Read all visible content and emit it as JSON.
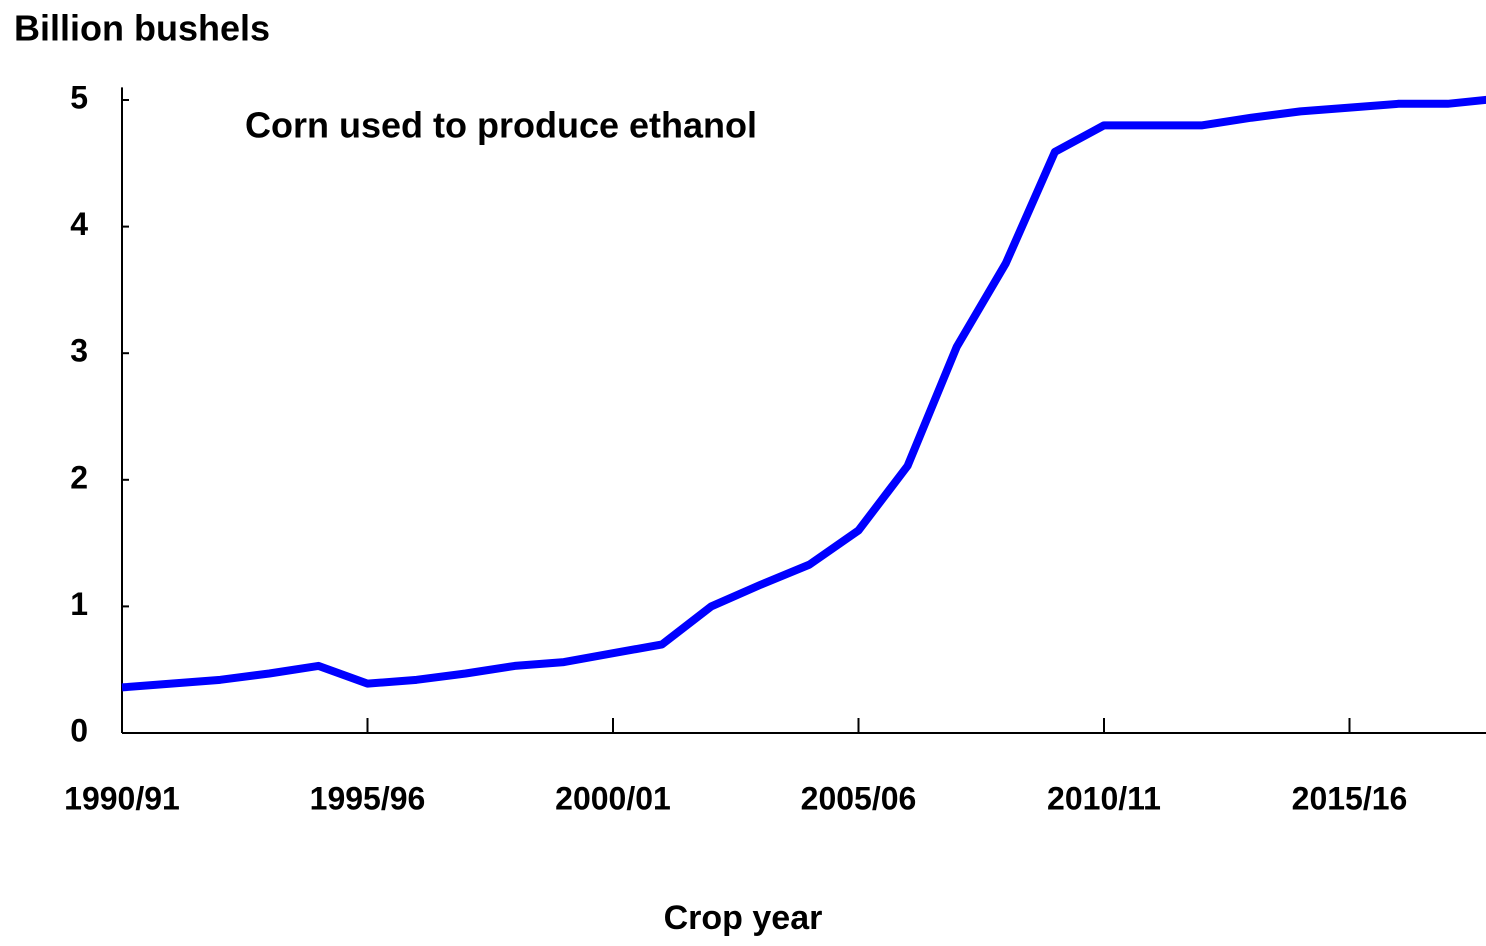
{
  "chart_data": {
    "type": "line",
    "title": "Billion bushels",
    "annotation": "Corn used to produce ethanol",
    "x_label": "Crop year",
    "categories": [
      "1990/91",
      null,
      null,
      null,
      null,
      "1995/96",
      null,
      null,
      null,
      null,
      "2000/01",
      null,
      null,
      null,
      null,
      "2005/06",
      null,
      null,
      null,
      null,
      "2010/11",
      null,
      null,
      null,
      null,
      "2015/16",
      null,
      null,
      null
    ],
    "values": [
      0.36,
      0.39,
      0.42,
      0.47,
      0.53,
      0.39,
      0.42,
      0.47,
      0.53,
      0.56,
      0.63,
      0.7,
      1.0,
      1.17,
      1.33,
      1.6,
      2.11,
      3.05,
      3.71,
      4.59,
      4.8,
      4.8,
      4.8,
      4.86,
      4.91,
      4.94,
      4.97,
      4.97,
      5.01
    ],
    "color": "#0000ff",
    "ylim": [
      0,
      5.1
    ],
    "yticks": [
      0,
      1,
      2,
      3,
      4,
      5
    ]
  }
}
